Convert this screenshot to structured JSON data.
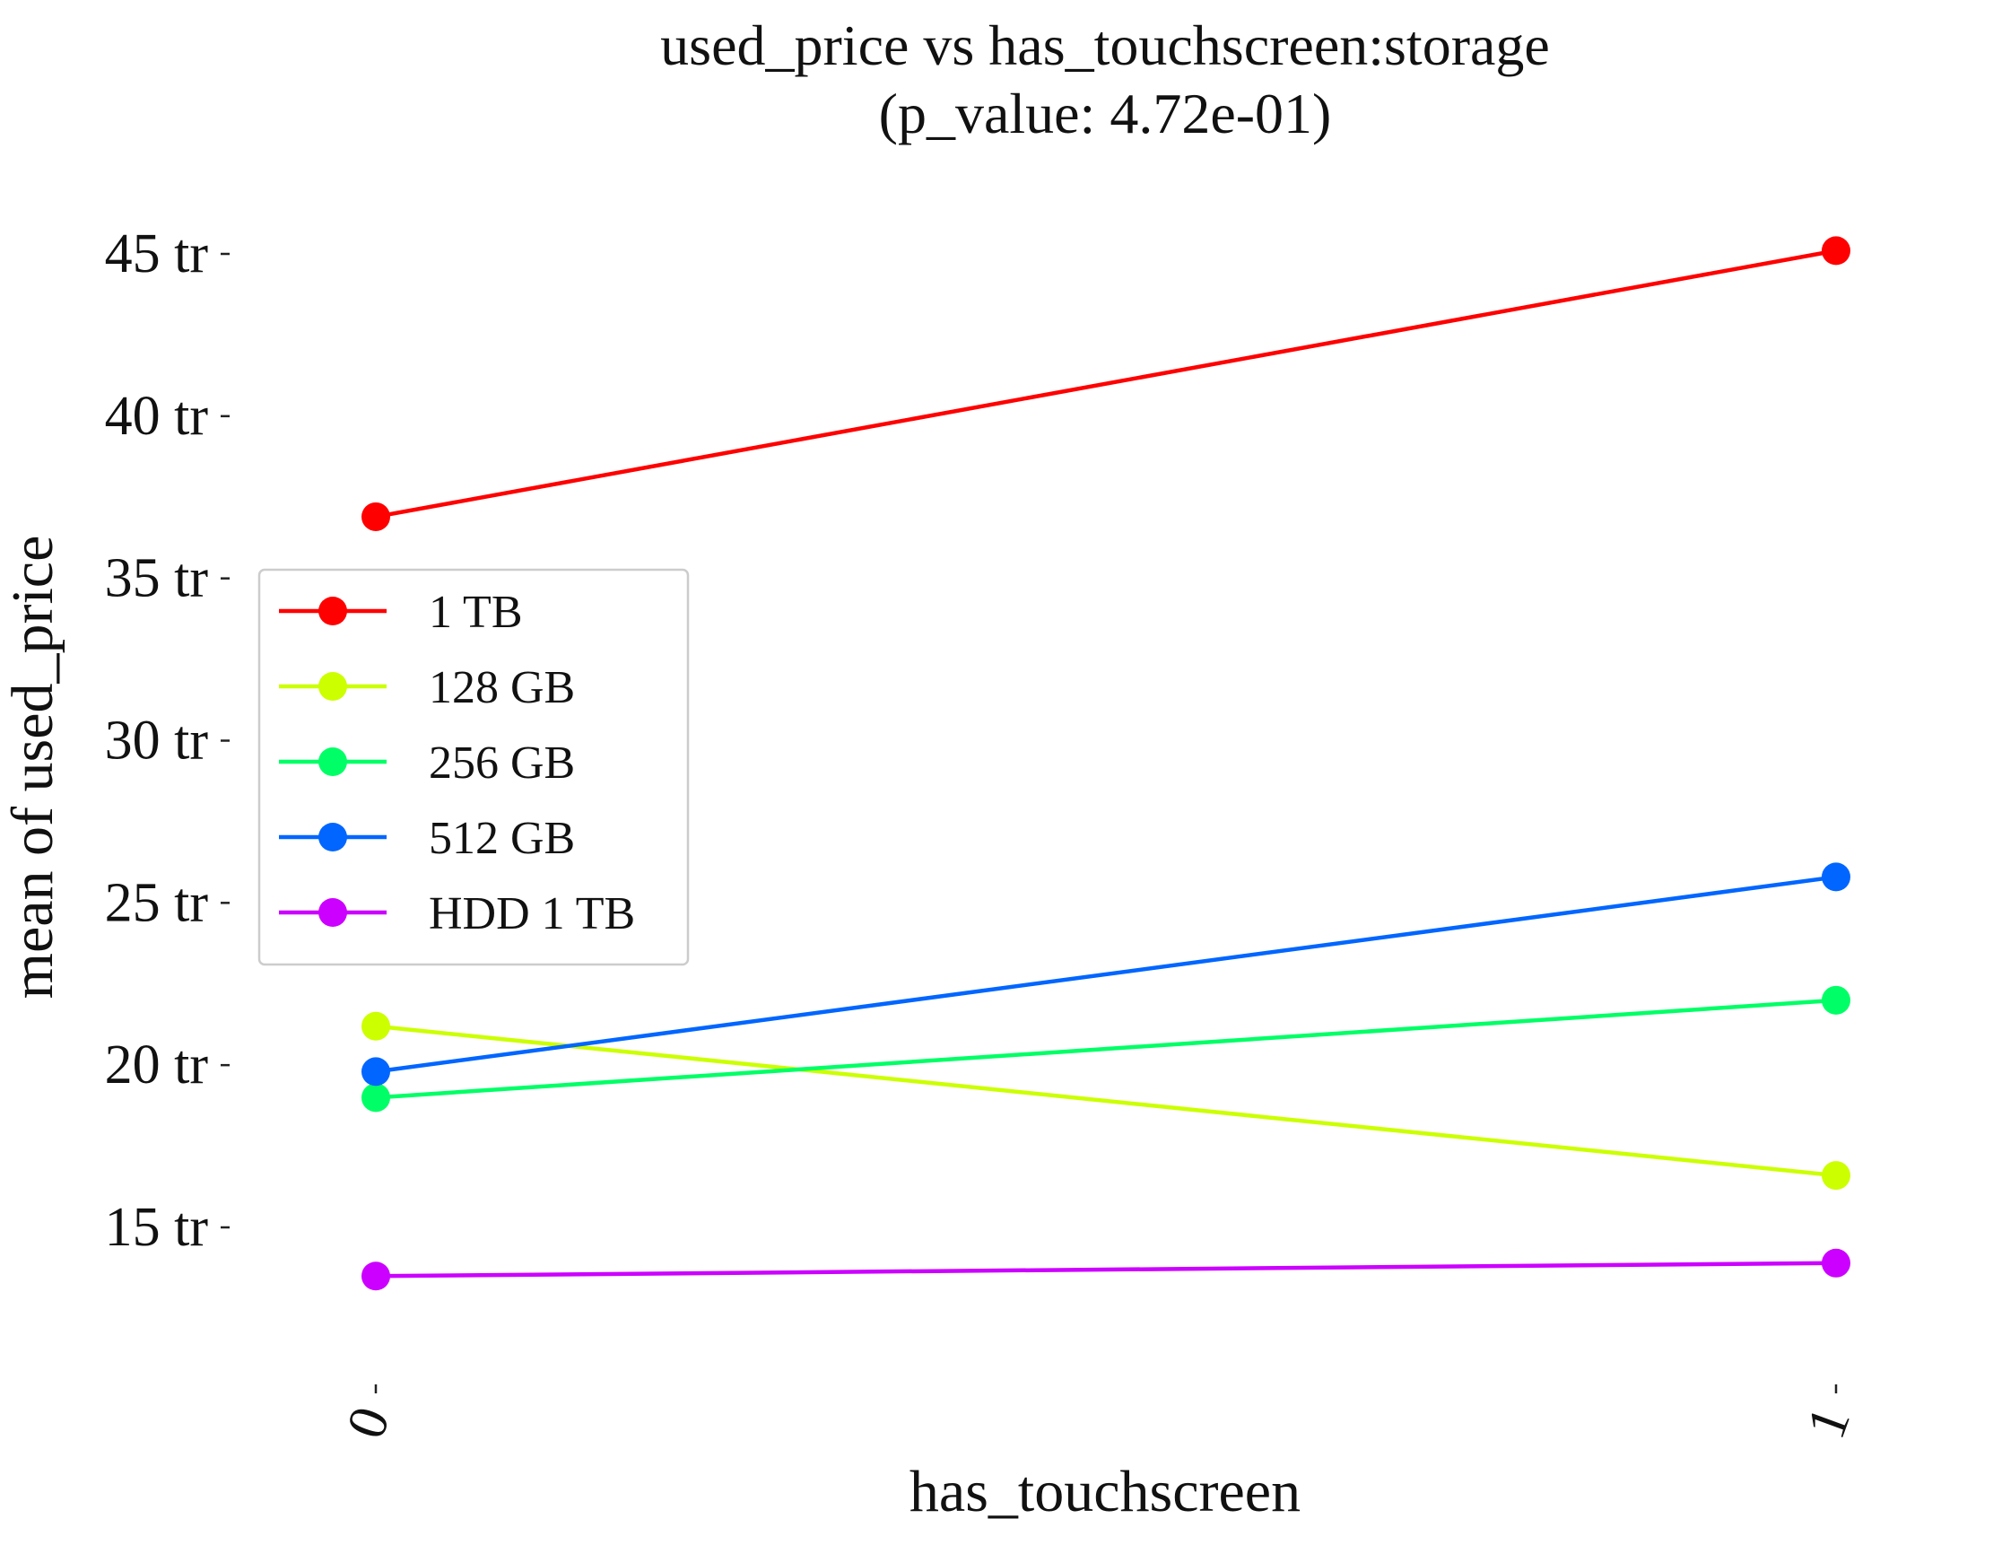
{
  "chart_data": {
    "type": "line",
    "title": "used_price vs has_touchscreen:storage",
    "subtitle": "(p_value: 4.72e-01)",
    "xlabel": "has_touchscreen",
    "ylabel": "mean of used_price",
    "categories": [
      "0",
      "1"
    ],
    "ylim": [
      10.5,
      47
    ],
    "yticks": [
      15,
      20,
      25,
      30,
      35,
      40,
      45
    ],
    "ytick_labels": [
      "15 tr",
      "20 tr",
      "25 tr",
      "30 tr",
      "35 tr",
      "40 tr",
      "45 tr"
    ],
    "grid": false,
    "legend_position": "center-left",
    "series": [
      {
        "name": "1 TB",
        "color": "#ff0000",
        "values": [
          36.9,
          45.1
        ]
      },
      {
        "name": "128 GB",
        "color": "#ccff00",
        "values": [
          21.2,
          16.6
        ]
      },
      {
        "name": "256 GB",
        "color": "#00ff66",
        "values": [
          19.0,
          22.0
        ]
      },
      {
        "name": "512 GB",
        "color": "#0066ff",
        "values": [
          19.8,
          25.8
        ]
      },
      {
        "name": "HDD 1 TB",
        "color": "#cc00ff",
        "values": [
          13.5,
          13.9
        ]
      }
    ]
  }
}
